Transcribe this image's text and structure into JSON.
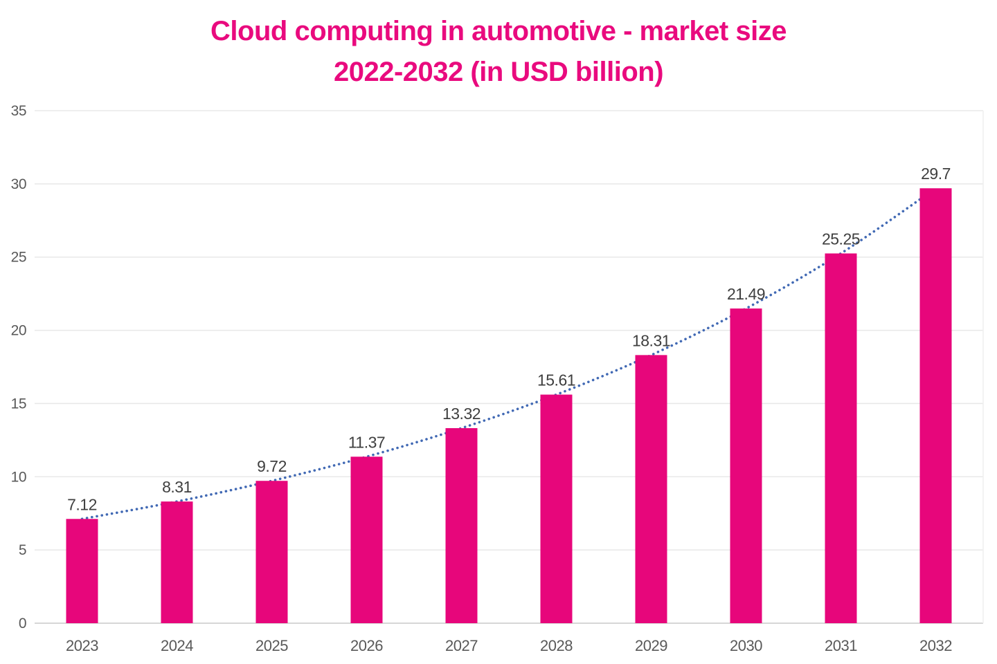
{
  "title": {
    "line1": "Cloud computing in automotive - market size",
    "line2": "2022-2032 (in USD billion)"
  },
  "colors": {
    "title": "#e90a7e",
    "bar": "#e7067b",
    "trendline": "#4169b4",
    "gridline": "#e8e8e8",
    "axis_line": "#d6d6d6",
    "right_border": "#efefef",
    "tick_label": "#595959",
    "data_label": "#3f3f3f",
    "background": "#ffffff"
  },
  "chart_data": {
    "type": "bar",
    "title": "Cloud computing in automotive - market size 2022-2032 (in USD billion)",
    "categories": [
      "2023",
      "2024",
      "2025",
      "2026",
      "2027",
      "2028",
      "2029",
      "2030",
      "2031",
      "2032"
    ],
    "values": [
      7.12,
      8.31,
      9.72,
      11.37,
      13.32,
      15.61,
      18.31,
      21.49,
      25.25,
      29.7
    ],
    "data_labels": [
      "7.12",
      "8.31",
      "9.72",
      "11.37",
      "13.32",
      "15.61",
      "18.31",
      "21.49",
      "25.25",
      "29.7"
    ],
    "xlabel": "",
    "ylabel": "",
    "ylim": [
      0,
      35
    ],
    "yticks": [
      0,
      5,
      10,
      15,
      20,
      25,
      30,
      35
    ],
    "grid": true,
    "legend": false,
    "trendline": {
      "style": "dotted",
      "shape": "exponential",
      "through": "bar-tops"
    }
  }
}
